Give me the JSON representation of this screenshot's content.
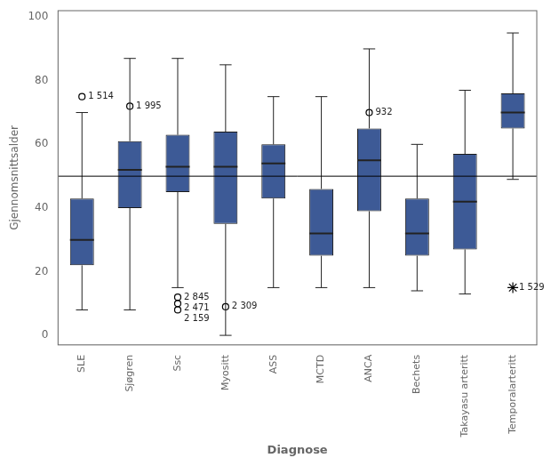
{
  "chart_data": {
    "type": "box",
    "categories": [
      "SLE",
      "Sjøgren",
      "Ssc",
      "Myositt",
      "ASS",
      "MCTD",
      "ANCA",
      "Bechets",
      "Takayasu arteritt",
      "Temporalarteritt"
    ],
    "values": [
      {
        "min": 8,
        "q1": 22,
        "median": 30,
        "q3": 43,
        "max": 70
      },
      {
        "min": 8,
        "q1": 40,
        "median": 52,
        "q3": 61,
        "max": 87
      },
      {
        "min": 15,
        "q1": 45,
        "median": 53,
        "q3": 63,
        "max": 87
      },
      {
        "min": 0,
        "q1": 35,
        "median": 53,
        "q3": 64,
        "max": 85
      },
      {
        "min": 15,
        "q1": 43,
        "median": 54,
        "q3": 60,
        "max": 75
      },
      {
        "min": 15,
        "q1": 25,
        "median": 32,
        "q3": 46,
        "max": 75
      },
      {
        "min": 15,
        "q1": 39,
        "median": 55,
        "q3": 65,
        "max": 90
      },
      {
        "min": 14,
        "q1": 25,
        "median": 32,
        "q3": 43,
        "max": 60
      },
      {
        "min": 13,
        "q1": 27,
        "median": 42,
        "q3": 57,
        "max": 77
      },
      {
        "min": 49,
        "q1": 65,
        "median": 70,
        "q3": 76,
        "max": 95
      }
    ],
    "color": "#3d5a96",
    "outliers": [
      {
        "category": "SLE",
        "value": 75,
        "label": "1 514",
        "marker": "circle"
      },
      {
        "category": "Sjøgren",
        "value": 72,
        "label": "1 995",
        "marker": "circle"
      },
      {
        "category": "Ssc",
        "value": 12,
        "label": "2 845",
        "marker": "circle"
      },
      {
        "category": "Ssc",
        "value": 10,
        "label": "2 471",
        "marker": "circle"
      },
      {
        "category": "Ssc",
        "value": 8,
        "label": "2 159",
        "marker": "circle"
      },
      {
        "category": "Myositt",
        "value": 9,
        "label": "2 309",
        "marker": "circle"
      },
      {
        "category": "ANCA",
        "value": 70,
        "label": "932",
        "marker": "circle"
      },
      {
        "category": "Temporalarteritt",
        "value": 15,
        "label": "1 529",
        "marker": "star"
      }
    ],
    "reference_line": 50,
    "xlabel": "Diagnose",
    "ylabel": "Gjennomsnittsalder",
    "ylim": [
      -3,
      102
    ],
    "yticks": [
      0,
      20,
      40,
      60,
      80,
      100
    ],
    "grid": false
  }
}
